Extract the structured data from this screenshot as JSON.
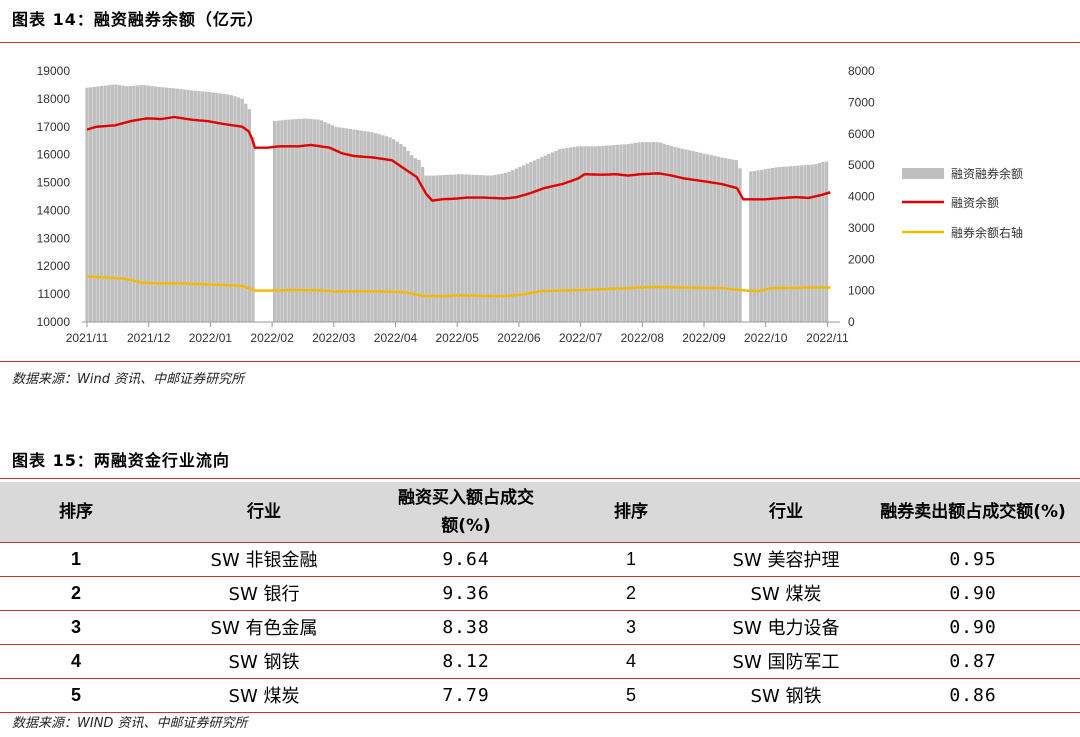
{
  "figure14": {
    "title": "图表 14：融资融券余额（亿元）",
    "source": "数据来源：Wind 资讯、中邮证券研究所"
  },
  "figure15": {
    "title": "图表 15：两融资金行业流向",
    "source": "数据来源：WIND 资讯、中邮证券研究所",
    "headers": [
      "排序",
      "行业",
      "融资买入额占成交额(%)",
      "排序",
      "行业",
      "融券卖出额占成交额(%)"
    ],
    "rows": [
      {
        "rank1": "1",
        "ind1": "SW 非银金融",
        "val1": "9.64",
        "rank2": "1",
        "ind2": "SW 美容护理",
        "val2": "0.95"
      },
      {
        "rank1": "2",
        "ind1": "SW 银行",
        "val1": "9.36",
        "rank2": "2",
        "ind2": "SW 煤炭",
        "val2": "0.90"
      },
      {
        "rank1": "3",
        "ind1": "SW 有色金属",
        "val1": "8.38",
        "rank2": "3",
        "ind2": "SW 电力设备",
        "val2": "0.90"
      },
      {
        "rank1": "4",
        "ind1": "SW 钢铁",
        "val1": "8.12",
        "rank2": "4",
        "ind2": "SW 国防军工",
        "val2": "0.87"
      },
      {
        "rank1": "5",
        "ind1": "SW 煤炭",
        "val1": "7.79",
        "rank2": "5",
        "ind2": "SW 钢铁",
        "val2": "0.86"
      }
    ]
  },
  "chart_data": {
    "type": "bar",
    "x_ticks": [
      "2021/11",
      "2021/12",
      "2022/01",
      "2022/02",
      "2022/03",
      "2022/04",
      "2022/05",
      "2022/06",
      "2022/07",
      "2022/08",
      "2022/09",
      "2022/10",
      "2022/11"
    ],
    "y_left": {
      "min": 10000,
      "max": 19000,
      "ticks": [
        10000,
        11000,
        12000,
        13000,
        14000,
        15000,
        16000,
        17000,
        18000,
        19000
      ]
    },
    "y_right": {
      "min": 0,
      "max": 8000,
      "ticks": [
        0,
        1000,
        2000,
        3000,
        4000,
        5000,
        6000,
        7000,
        8000
      ]
    },
    "legend_position": "right",
    "series": [
      {
        "name": "融资融券余额",
        "kind": "bar",
        "axis": "left",
        "color": "#bfbfbf",
        "anchors": [
          [
            0,
            18400
          ],
          [
            0.2,
            18450
          ],
          [
            0.45,
            18520
          ],
          [
            0.65,
            18450
          ],
          [
            0.9,
            18500
          ],
          [
            1.2,
            18420
          ],
          [
            1.4,
            18380
          ],
          [
            1.7,
            18300
          ],
          [
            1.95,
            18250
          ],
          [
            2.3,
            18150
          ],
          [
            2.5,
            18000
          ],
          [
            2.62,
            17600
          ],
          [
            2.68,
            16400
          ],
          [
            2.8,
            16350
          ],
          [
            3.0,
            17200
          ],
          [
            3.2,
            17250
          ],
          [
            3.5,
            17300
          ],
          [
            3.75,
            17250
          ],
          [
            4.0,
            17000
          ],
          [
            4.3,
            16900
          ],
          [
            4.6,
            16800
          ],
          [
            4.9,
            16600
          ],
          [
            5.1,
            16300
          ],
          [
            5.25,
            15900
          ],
          [
            5.35,
            15800
          ],
          [
            5.45,
            15250
          ],
          [
            5.6,
            15250
          ],
          [
            5.8,
            15280
          ],
          [
            6.0,
            15300
          ],
          [
            6.2,
            15280
          ],
          [
            6.5,
            15250
          ],
          [
            6.75,
            15350
          ],
          [
            7.0,
            15600
          ],
          [
            7.3,
            15900
          ],
          [
            7.6,
            16200
          ],
          [
            7.9,
            16300
          ],
          [
            8.2,
            16300
          ],
          [
            8.5,
            16350
          ],
          [
            8.7,
            16380
          ],
          [
            8.9,
            16450
          ],
          [
            9.2,
            16450
          ],
          [
            9.4,
            16300
          ],
          [
            9.6,
            16200
          ],
          [
            9.9,
            16050
          ],
          [
            10.2,
            15900
          ],
          [
            10.45,
            15800
          ],
          [
            10.5,
            15500
          ],
          [
            10.55,
            15400
          ],
          [
            10.7,
            15400
          ],
          [
            10.9,
            15480
          ],
          [
            11.1,
            15550
          ],
          [
            11.4,
            15600
          ],
          [
            11.7,
            15650
          ],
          [
            11.85,
            15750
          ]
        ]
      },
      {
        "name": "融资余额",
        "kind": "line",
        "axis": "left",
        "color": "#e00000",
        "anchors": [
          [
            0,
            16900
          ],
          [
            0.15,
            17000
          ],
          [
            0.45,
            17050
          ],
          [
            0.7,
            17200
          ],
          [
            0.95,
            17300
          ],
          [
            1.2,
            17280
          ],
          [
            1.4,
            17350
          ],
          [
            1.7,
            17250
          ],
          [
            1.95,
            17200
          ],
          [
            2.2,
            17100
          ],
          [
            2.5,
            17000
          ],
          [
            2.62,
            16800
          ],
          [
            2.7,
            16250
          ],
          [
            2.9,
            16250
          ],
          [
            3.1,
            16300
          ],
          [
            3.4,
            16300
          ],
          [
            3.6,
            16350
          ],
          [
            3.9,
            16250
          ],
          [
            4.1,
            16050
          ],
          [
            4.3,
            15950
          ],
          [
            4.6,
            15900
          ],
          [
            4.9,
            15800
          ],
          [
            5.1,
            15500
          ],
          [
            5.3,
            15200
          ],
          [
            5.45,
            14600
          ],
          [
            5.55,
            14350
          ],
          [
            5.7,
            14400
          ],
          [
            5.9,
            14420
          ],
          [
            6.1,
            14460
          ],
          [
            6.4,
            14460
          ],
          [
            6.7,
            14430
          ],
          [
            6.9,
            14470
          ],
          [
            7.1,
            14600
          ],
          [
            7.35,
            14800
          ],
          [
            7.65,
            14950
          ],
          [
            7.9,
            15150
          ],
          [
            8.0,
            15300
          ],
          [
            8.3,
            15280
          ],
          [
            8.5,
            15300
          ],
          [
            8.7,
            15250
          ],
          [
            8.9,
            15300
          ],
          [
            9.2,
            15330
          ],
          [
            9.4,
            15250
          ],
          [
            9.6,
            15150
          ],
          [
            9.9,
            15050
          ],
          [
            10.2,
            14950
          ],
          [
            10.45,
            14800
          ],
          [
            10.55,
            14400
          ],
          [
            10.7,
            14400
          ],
          [
            10.9,
            14400
          ],
          [
            11.2,
            14450
          ],
          [
            11.4,
            14480
          ],
          [
            11.6,
            14450
          ],
          [
            11.8,
            14550
          ],
          [
            11.95,
            14650
          ]
        ]
      },
      {
        "name": "融券余额右轴",
        "kind": "line",
        "axis": "right",
        "color": "#f5b800",
        "anchors": [
          [
            0,
            1450
          ],
          [
            0.3,
            1420
          ],
          [
            0.6,
            1380
          ],
          [
            0.9,
            1250
          ],
          [
            1.2,
            1230
          ],
          [
            1.5,
            1230
          ],
          [
            1.9,
            1200
          ],
          [
            2.2,
            1180
          ],
          [
            2.5,
            1150
          ],
          [
            2.7,
            1000
          ],
          [
            3.0,
            1000
          ],
          [
            3.3,
            1020
          ],
          [
            3.7,
            1010
          ],
          [
            4.0,
            970
          ],
          [
            4.4,
            980
          ],
          [
            4.8,
            970
          ],
          [
            5.1,
            950
          ],
          [
            5.4,
            830
          ],
          [
            5.7,
            820
          ],
          [
            6.0,
            850
          ],
          [
            6.4,
            830
          ],
          [
            6.7,
            820
          ],
          [
            7.0,
            880
          ],
          [
            7.3,
            980
          ],
          [
            7.6,
            1000
          ],
          [
            8.0,
            1020
          ],
          [
            8.3,
            1050
          ],
          [
            8.6,
            1070
          ],
          [
            8.9,
            1100
          ],
          [
            9.2,
            1120
          ],
          [
            9.5,
            1100
          ],
          [
            9.8,
            1090
          ],
          [
            10.2,
            1080
          ],
          [
            10.45,
            1030
          ],
          [
            10.6,
            1000
          ],
          [
            10.8,
            980
          ],
          [
            11.0,
            1080
          ],
          [
            11.4,
            1090
          ],
          [
            11.7,
            1100
          ],
          [
            11.95,
            1100
          ]
        ]
      }
    ],
    "gaps": [
      [
        2.7,
        2.97
      ],
      [
        10.54,
        10.64
      ]
    ]
  }
}
